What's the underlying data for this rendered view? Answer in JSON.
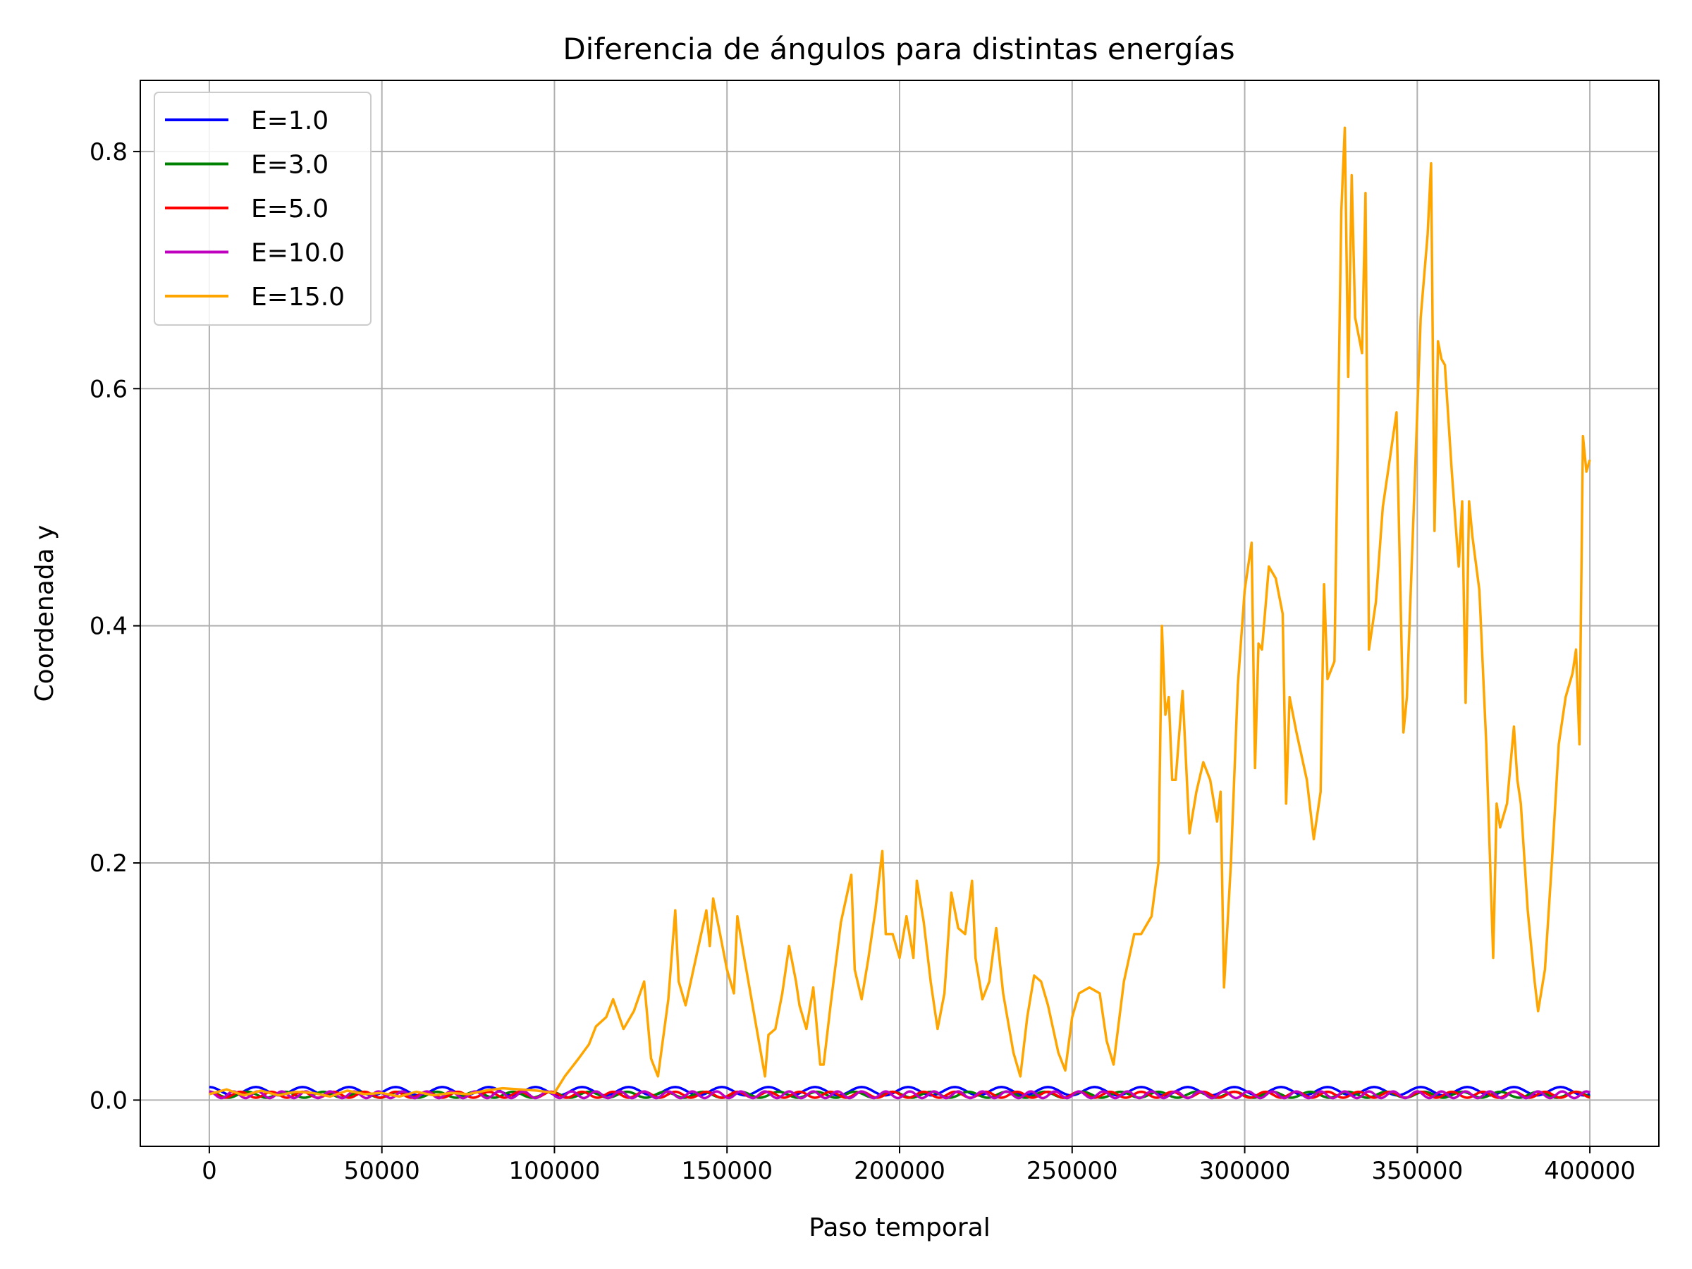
{
  "chart_data": {
    "type": "line",
    "title": "Diferencia de ángulos para distintas energías",
    "xlabel": "Paso temporal",
    "ylabel": "Coordenada y",
    "xlim": [
      -20000,
      420000
    ],
    "ylim": [
      -0.039,
      0.86
    ],
    "xticks": [
      0,
      50000,
      100000,
      150000,
      200000,
      250000,
      300000,
      350000,
      400000
    ],
    "xtick_labels": [
      "0",
      "50000",
      "100000",
      "150000",
      "200000",
      "250000",
      "300000",
      "350000",
      "400000"
    ],
    "yticks": [
      0.0,
      0.2,
      0.4,
      0.6,
      0.8
    ],
    "ytick_labels": [
      "0.0",
      "0.2",
      "0.4",
      "0.6",
      "0.8"
    ],
    "grid": true,
    "legend_position": "upper-left",
    "series": [
      {
        "name": "E=1.0",
        "color": "#0000ff",
        "wave": {
          "kind": "oscillation",
          "x_start": 0,
          "x_end": 400000,
          "mean": 0.0075,
          "amplitude": 0.0035,
          "period": 13500
        }
      },
      {
        "name": "E=3.0",
        "color": "#008000",
        "wave": {
          "kind": "oscillation",
          "x_start": 0,
          "x_end": 400000,
          "mean": 0.0045,
          "amplitude": 0.0025,
          "period": 11000
        }
      },
      {
        "name": "E=5.0",
        "color": "#ff0000",
        "wave": {
          "kind": "oscillation",
          "x_start": 0,
          "x_end": 400000,
          "mean": 0.0045,
          "amplitude": 0.0025,
          "period": 9000
        }
      },
      {
        "name": "E=10.0",
        "color": "#bf00bf",
        "wave": {
          "kind": "oscillation",
          "x_start": 0,
          "x_end": 400000,
          "mean": 0.0045,
          "amplitude": 0.0028,
          "period": 7000
        }
      },
      {
        "name": "E=15.0",
        "color": "#ffa500",
        "x": [
          0,
          5000,
          10000,
          15000,
          20000,
          25000,
          30000,
          35000,
          40000,
          45000,
          50000,
          55000,
          60000,
          65000,
          70000,
          75000,
          80000,
          85000,
          90000,
          95000,
          100000,
          103000,
          107000,
          110000,
          112000,
          115000,
          117000,
          120000,
          123000,
          126000,
          128000,
          130000,
          133000,
          135000,
          136000,
          138000,
          141000,
          144000,
          145000,
          146000,
          148000,
          150000,
          152000,
          153000,
          155000,
          158000,
          161000,
          162000,
          164000,
          166000,
          168000,
          170000,
          171000,
          173000,
          175000,
          177000,
          178000,
          180000,
          183000,
          186000,
          187000,
          189000,
          191000,
          193000,
          195000,
          196000,
          198000,
          200000,
          202000,
          204000,
          205000,
          207000,
          209000,
          211000,
          213000,
          215000,
          217000,
          219000,
          221000,
          222000,
          224000,
          226000,
          228000,
          230000,
          233000,
          235000,
          237000,
          239000,
          241000,
          243000,
          246000,
          248000,
          250000,
          252000,
          255000,
          258000,
          260000,
          262000,
          265000,
          268000,
          270000,
          273000,
          275000,
          276000,
          277000,
          278000,
          279000,
          280000,
          282000,
          284000,
          286000,
          288000,
          290000,
          292000,
          293000,
          294000,
          296000,
          298000,
          300000,
          302000,
          303000,
          304000,
          305000,
          307000,
          309000,
          311000,
          312000,
          313000,
          315000,
          318000,
          320000,
          322000,
          323000,
          324000,
          326000,
          328000,
          329000,
          330000,
          331000,
          332000,
          334000,
          335000,
          336000,
          338000,
          340000,
          342000,
          344000,
          346000,
          347000,
          349000,
          351000,
          353000,
          354000,
          355000,
          356000,
          357000,
          358000,
          360000,
          362000,
          363000,
          364000,
          365000,
          366000,
          368000,
          370000,
          372000,
          373000,
          374000,
          376000,
          378000,
          379000,
          380000,
          382000,
          384000,
          385000,
          387000,
          389000,
          391000,
          393000,
          395000,
          396000,
          397000,
          398000,
          399000,
          400000
        ],
        "y": [
          0.005,
          0.009,
          0.004,
          0.008,
          0.004,
          0.007,
          0.006,
          0.003,
          0.008,
          0.005,
          0.006,
          0.003,
          0.007,
          0.004,
          0.006,
          0.005,
          0.008,
          0.01,
          0.009,
          0.008,
          0.006,
          0.02,
          0.035,
          0.047,
          0.062,
          0.07,
          0.085,
          0.06,
          0.075,
          0.1,
          0.035,
          0.02,
          0.085,
          0.16,
          0.1,
          0.08,
          0.12,
          0.16,
          0.13,
          0.17,
          0.14,
          0.11,
          0.09,
          0.155,
          0.12,
          0.07,
          0.02,
          0.055,
          0.06,
          0.09,
          0.13,
          0.1,
          0.08,
          0.06,
          0.095,
          0.03,
          0.03,
          0.08,
          0.15,
          0.19,
          0.11,
          0.085,
          0.12,
          0.16,
          0.21,
          0.14,
          0.14,
          0.12,
          0.155,
          0.12,
          0.185,
          0.15,
          0.1,
          0.06,
          0.09,
          0.175,
          0.145,
          0.14,
          0.185,
          0.12,
          0.085,
          0.1,
          0.145,
          0.09,
          0.04,
          0.02,
          0.07,
          0.105,
          0.1,
          0.08,
          0.04,
          0.025,
          0.07,
          0.09,
          0.095,
          0.09,
          0.05,
          0.03,
          0.1,
          0.14,
          0.14,
          0.155,
          0.2,
          0.4,
          0.325,
          0.34,
          0.27,
          0.27,
          0.345,
          0.225,
          0.26,
          0.285,
          0.27,
          0.235,
          0.26,
          0.095,
          0.2,
          0.35,
          0.43,
          0.47,
          0.28,
          0.385,
          0.38,
          0.45,
          0.44,
          0.41,
          0.25,
          0.34,
          0.31,
          0.27,
          0.22,
          0.26,
          0.435,
          0.355,
          0.37,
          0.75,
          0.82,
          0.61,
          0.78,
          0.66,
          0.63,
          0.765,
          0.38,
          0.42,
          0.5,
          0.54,
          0.58,
          0.31,
          0.34,
          0.5,
          0.66,
          0.73,
          0.79,
          0.48,
          0.64,
          0.625,
          0.62,
          0.53,
          0.45,
          0.505,
          0.335,
          0.505,
          0.475,
          0.43,
          0.3,
          0.12,
          0.25,
          0.23,
          0.25,
          0.315,
          0.27,
          0.25,
          0.16,
          0.1,
          0.075,
          0.11,
          0.2,
          0.3,
          0.34,
          0.36,
          0.38,
          0.3,
          0.56,
          0.53,
          0.54
        ]
      }
    ]
  }
}
